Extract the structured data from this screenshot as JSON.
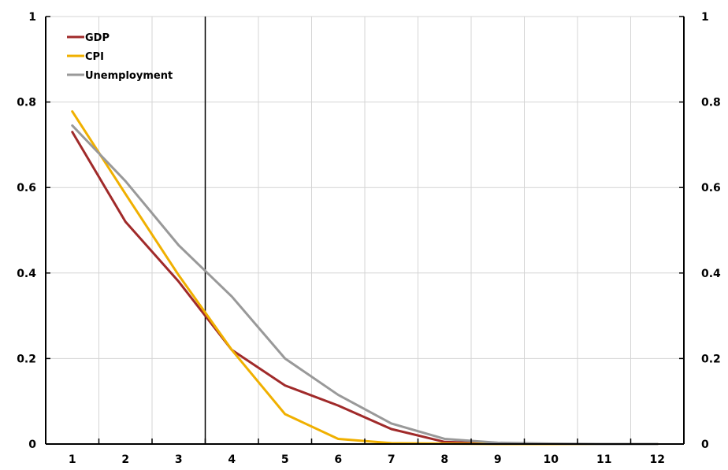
{
  "chart_data": {
    "type": "line",
    "x": [
      1,
      2,
      3,
      4,
      5,
      6,
      7,
      8,
      9,
      10,
      11,
      12
    ],
    "series": [
      {
        "name": "GDP",
        "color": "#a02a2a",
        "values": [
          0.73,
          0.52,
          0.38,
          0.22,
          0.137,
          0.09,
          0.035,
          0.005,
          0.001,
          0.0,
          0.0,
          0.0
        ]
      },
      {
        "name": "CPI",
        "color": "#f0b000",
        "values": [
          0.778,
          0.585,
          0.395,
          0.22,
          0.07,
          0.012,
          0.002,
          0.001,
          0.0,
          0.0,
          0.0,
          0.0
        ]
      },
      {
        "name": "Unemployment",
        "color": "#999999",
        "values": [
          0.745,
          0.615,
          0.465,
          0.345,
          0.2,
          0.115,
          0.048,
          0.012,
          0.003,
          0.001,
          0.0,
          0.0
        ]
      }
    ],
    "yticks": [
      "0",
      "0.2",
      "0.4",
      "0.6",
      "0.8",
      "1"
    ],
    "xticks": [
      "1",
      "2",
      "3",
      "4",
      "5",
      "6",
      "7",
      "8",
      "9",
      "10",
      "11",
      "12"
    ],
    "ylim": [
      0,
      1
    ],
    "xlim": [
      0.5,
      12.5
    ],
    "vertical_marker_x": 3.5,
    "legend_position": "top-left",
    "grid": true,
    "title": "",
    "xlabel": "",
    "ylabel": ""
  }
}
